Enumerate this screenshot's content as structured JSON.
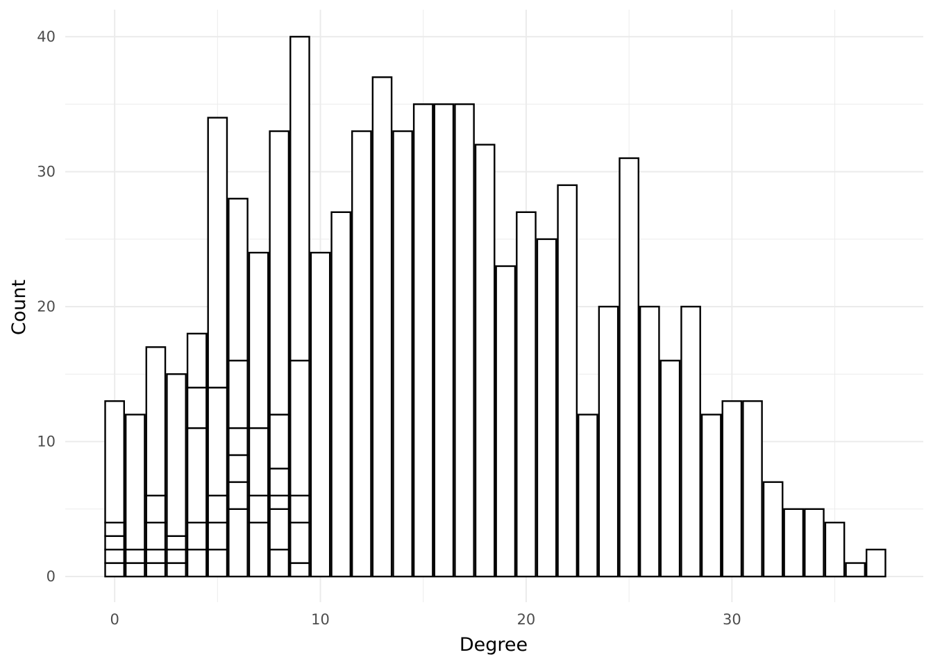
{
  "chart_data": {
    "type": "bar",
    "stacked": true,
    "title": "",
    "xlabel": "Degree",
    "ylabel": "Count",
    "xlim": [
      -2.4,
      39.3
    ],
    "ylim": [
      -1.9,
      42
    ],
    "xticks": [
      0,
      10,
      20,
      30
    ],
    "yticks": [
      0,
      10,
      20,
      30,
      40
    ],
    "xticks_minor": [
      5,
      15,
      25,
      35
    ],
    "yticks_minor": [
      5,
      15,
      25,
      35
    ],
    "grid": true,
    "legend": "none",
    "bar_fill": "#ffffff",
    "bar_stroke": "#000000",
    "grid_color": "#ebebeb",
    "bars": [
      {
        "degree": 0,
        "total": 13,
        "segment_tops": [
          1,
          2,
          3,
          4,
          13
        ]
      },
      {
        "degree": 1,
        "total": 12,
        "segment_tops": [
          1,
          2,
          12
        ]
      },
      {
        "degree": 2,
        "total": 17,
        "segment_tops": [
          1,
          2,
          4,
          6,
          17
        ]
      },
      {
        "degree": 3,
        "total": 15,
        "segment_tops": [
          1,
          2,
          3,
          15
        ]
      },
      {
        "degree": 4,
        "total": 18,
        "segment_tops": [
          2,
          4,
          11,
          14,
          18
        ]
      },
      {
        "degree": 5,
        "total": 34,
        "segment_tops": [
          2,
          4,
          6,
          14,
          34
        ]
      },
      {
        "degree": 6,
        "total": 28,
        "segment_tops": [
          5,
          7,
          9,
          11,
          16,
          28
        ]
      },
      {
        "degree": 7,
        "total": 24,
        "segment_tops": [
          4,
          6,
          11,
          24
        ]
      },
      {
        "degree": 8,
        "total": 33,
        "segment_tops": [
          2,
          5,
          6,
          8,
          12,
          33
        ]
      },
      {
        "degree": 9,
        "total": 40,
        "segment_tops": [
          1,
          4,
          6,
          16,
          40
        ]
      },
      {
        "degree": 10,
        "total": 24,
        "segment_tops": [
          24
        ]
      },
      {
        "degree": 11,
        "total": 27,
        "segment_tops": [
          27
        ]
      },
      {
        "degree": 12,
        "total": 33,
        "segment_tops": [
          33
        ]
      },
      {
        "degree": 13,
        "total": 37,
        "segment_tops": [
          37
        ]
      },
      {
        "degree": 14,
        "total": 33,
        "segment_tops": [
          33
        ]
      },
      {
        "degree": 15,
        "total": 35,
        "segment_tops": [
          35
        ]
      },
      {
        "degree": 16,
        "total": 35,
        "segment_tops": [
          35
        ]
      },
      {
        "degree": 17,
        "total": 35,
        "segment_tops": [
          35
        ]
      },
      {
        "degree": 18,
        "total": 32,
        "segment_tops": [
          32
        ]
      },
      {
        "degree": 19,
        "total": 23,
        "segment_tops": [
          23
        ]
      },
      {
        "degree": 20,
        "total": 27,
        "segment_tops": [
          27
        ]
      },
      {
        "degree": 21,
        "total": 25,
        "segment_tops": [
          25
        ]
      },
      {
        "degree": 22,
        "total": 29,
        "segment_tops": [
          29
        ]
      },
      {
        "degree": 23,
        "total": 12,
        "segment_tops": [
          12
        ]
      },
      {
        "degree": 24,
        "total": 20,
        "segment_tops": [
          20
        ]
      },
      {
        "degree": 25,
        "total": 31,
        "segment_tops": [
          31
        ]
      },
      {
        "degree": 26,
        "total": 20,
        "segment_tops": [
          20
        ]
      },
      {
        "degree": 27,
        "total": 16,
        "segment_tops": [
          16
        ]
      },
      {
        "degree": 28,
        "total": 20,
        "segment_tops": [
          20
        ]
      },
      {
        "degree": 29,
        "total": 12,
        "segment_tops": [
          12
        ]
      },
      {
        "degree": 30,
        "total": 13,
        "segment_tops": [
          13
        ]
      },
      {
        "degree": 31,
        "total": 13,
        "segment_tops": [
          13
        ]
      },
      {
        "degree": 32,
        "total": 7,
        "segment_tops": [
          7
        ]
      },
      {
        "degree": 33,
        "total": 5,
        "segment_tops": [
          5
        ]
      },
      {
        "degree": 34,
        "total": 5,
        "segment_tops": [
          5
        ]
      },
      {
        "degree": 35,
        "total": 4,
        "segment_tops": [
          4
        ]
      },
      {
        "degree": 36,
        "total": 1,
        "segment_tops": [
          1
        ]
      },
      {
        "degree": 37,
        "total": 2,
        "segment_tops": [
          2
        ]
      }
    ]
  }
}
